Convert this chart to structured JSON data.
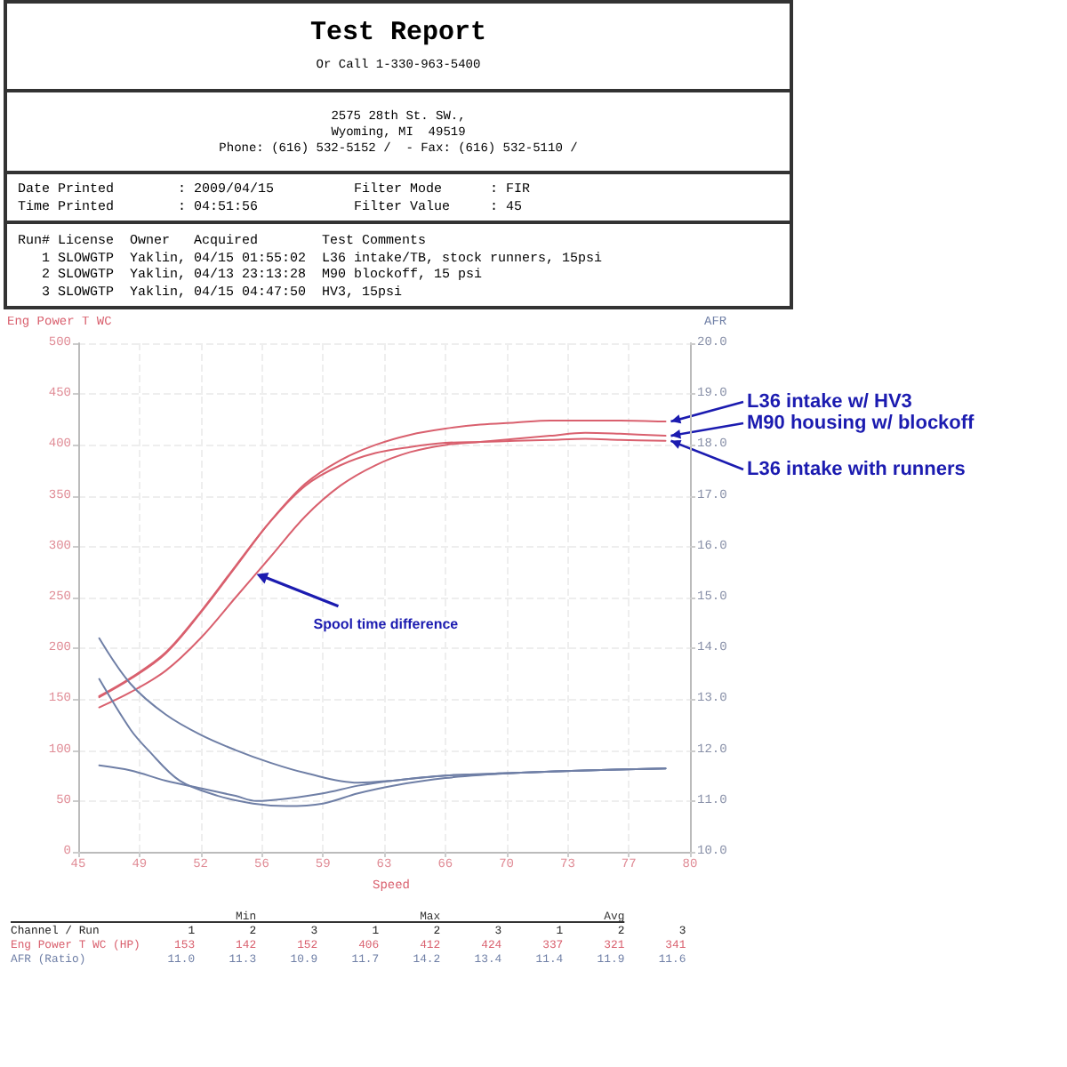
{
  "chart_data": {
    "type": "line",
    "title": "Test Report",
    "subtitle": "Or Call 1-330-963-5400",
    "xlabel": "Speed",
    "ylabel": "Eng Power T WC",
    "y2label": "AFR",
    "xlim": [
      45,
      80
    ],
    "xticks": [
      {
        "value": 45,
        "label": "45"
      },
      {
        "value": 48.5,
        "label": "49"
      },
      {
        "value": 52,
        "label": "52"
      },
      {
        "value": 55.5,
        "label": "56"
      },
      {
        "value": 59,
        "label": "59"
      },
      {
        "value": 62.5,
        "label": "63"
      },
      {
        "value": 66,
        "label": "66"
      },
      {
        "value": 69.5,
        "label": "70"
      },
      {
        "value": 73,
        "label": "73"
      },
      {
        "value": 76.5,
        "label": "77"
      },
      {
        "value": 80,
        "label": "80"
      }
    ],
    "ylim": [
      0,
      500
    ],
    "yticks": [
      0,
      50,
      100,
      150,
      200,
      250,
      300,
      350,
      400,
      450,
      500
    ],
    "y2lim": [
      10,
      20
    ],
    "y2ticks": [
      {
        "value": 10,
        "label": "10.0"
      },
      {
        "value": 11,
        "label": "11.0"
      },
      {
        "value": 12,
        "label": "12.0"
      },
      {
        "value": 13,
        "label": "13.0"
      },
      {
        "value": 14,
        "label": "14.0"
      },
      {
        "value": 15,
        "label": "15.0"
      },
      {
        "value": 16,
        "label": "16.0"
      },
      {
        "value": 17,
        "label": "17.0"
      },
      {
        "value": 18,
        "label": "18.0"
      },
      {
        "value": 19,
        "label": "19.0"
      },
      {
        "value": 20,
        "label": "20.0"
      }
    ],
    "grid": true,
    "legend": false,
    "series": [
      {
        "name": "L36 intake with runners",
        "color": "#d9606e",
        "x": [
          46.2,
          48,
          50,
          52,
          54,
          56,
          58,
          60,
          62,
          64,
          66,
          68,
          70,
          72,
          74,
          76,
          78.6
        ],
        "values": [
          153,
          171,
          196,
          236,
          281,
          325,
          360,
          380,
          392,
          398,
          402,
          403,
          404,
          405,
          406,
          405,
          404
        ]
      },
      {
        "name": "M90 housing w/ blockoff",
        "color": "#d9606e",
        "x": [
          46.2,
          48,
          50,
          52,
          54,
          56,
          58,
          60,
          62,
          64,
          66,
          68,
          70,
          72,
          74,
          76,
          78.6
        ],
        "values": [
          142,
          157,
          178,
          210,
          250,
          290,
          330,
          360,
          380,
          393,
          400,
          403,
          406,
          409,
          412,
          411,
          409
        ]
      },
      {
        "name": "L36 intake w/ HV3",
        "color": "#d9606e",
        "x": [
          46.2,
          48,
          50,
          52,
          54,
          56,
          58,
          60,
          62,
          64,
          66,
          68,
          70,
          72,
          74,
          76,
          78.6
        ],
        "values": [
          152,
          170,
          195,
          235,
          280,
          325,
          362,
          385,
          400,
          410,
          416,
          420,
          422,
          424,
          424,
          424,
          423
        ]
      },
      {
        "color": "#6f7fa6",
        "axis": "y2",
        "x": [
          46.2,
          48,
          50,
          52,
          54,
          55.2,
          57,
          59,
          61,
          63,
          66,
          70,
          74,
          78.6
        ],
        "values": [
          11.7,
          11.6,
          11.4,
          11.25,
          11.1,
          11.0,
          11.05,
          11.15,
          11.3,
          11.4,
          11.5,
          11.55,
          11.6,
          11.64
        ]
      },
      {
        "color": "#6f7fa6",
        "axis": "y2",
        "x": [
          46.2,
          48,
          50,
          52,
          54,
          56,
          58,
          61,
          63,
          66,
          70,
          74,
          78.6
        ],
        "values": [
          14.2,
          13.3,
          12.7,
          12.3,
          12.0,
          11.75,
          11.55,
          11.36,
          11.4,
          11.5,
          11.55,
          11.6,
          11.64
        ]
      },
      {
        "color": "#6f7fa6",
        "axis": "y2",
        "x": [
          46.2,
          48,
          49,
          50.8,
          53,
          55,
          56.9,
          59,
          61,
          63,
          66,
          70,
          74,
          78.6
        ],
        "values": [
          13.4,
          12.4,
          12.0,
          11.4,
          11.1,
          10.95,
          10.9,
          10.95,
          11.15,
          11.3,
          11.45,
          11.55,
          11.6,
          11.64
        ]
      }
    ],
    "annotations": [
      "2575 28th St. SW.,",
      "Wyoming, MI  49519",
      "Phone: (616) 532-5152 /  - Fax: (616) 532-5110 /",
      "Date Printed        : 2009/04/15          Filter Mode      : FIR",
      "Time Printed        : 04:51:56            Filter Value     : 45",
      "Run# License  Owner   Acquired        Test Comments",
      "   1 SLOWGTP  Yaklin, 04/15 01:55:02  L36 intake/TB, stock runners, 15psi",
      "   2 SLOWGTP  Yaklin, 04/13 23:13:28  M90 blockoff, 15 psi",
      "   3 SLOWGTP  Yaklin, 04/15 04:47:50  HV3, 15psi",
      {
        "text": "Spool time difference",
        "x": 55.2,
        "y": 273
      },
      "                                 Min                        Max                        Avg",
      "Channel / Run             1        2        3        1        2        3        1        2        3",
      "Eng Power T WC (HP)     153      142      152      406      412      424      337      321      341",
      "AFR (Ratio)            11.0     11.3     10.9     11.7     14.2     13.4     11.4     11.9     11.6"
    ]
  }
}
